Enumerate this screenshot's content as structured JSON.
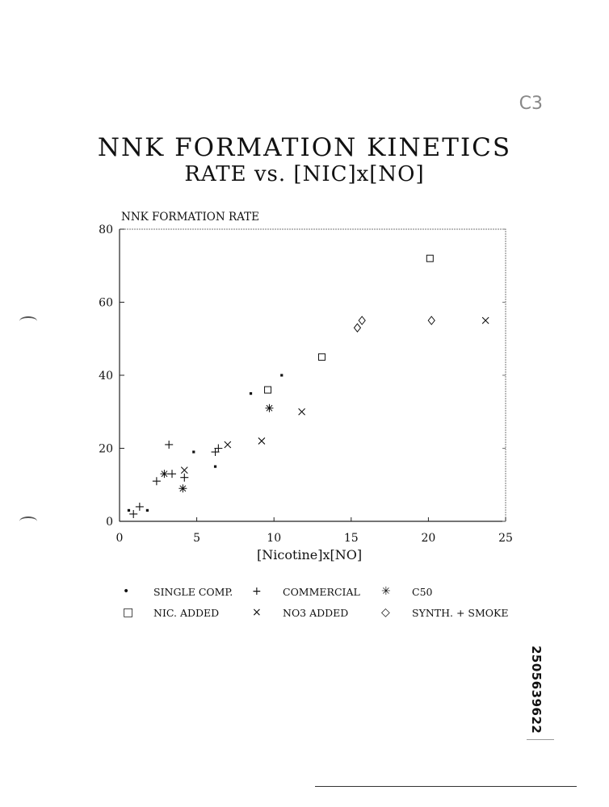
{
  "page_mark": "C3",
  "doc_id": "2505639622",
  "chart_data": {
    "type": "scatter",
    "title": "NNK FORMATION KINETICS",
    "subtitle": "RATE vs. [NIC]x[NO]",
    "xlabel": "[Nicotine]x[NO]",
    "ylabel": "NNK FORMATION RATE",
    "xlim": [
      0,
      25
    ],
    "ylim": [
      0,
      80
    ],
    "x_ticks": [
      0,
      5,
      10,
      15,
      20,
      25
    ],
    "y_ticks": [
      0,
      20,
      40,
      60,
      80
    ],
    "grid": false,
    "legend_position": "bottom",
    "series": [
      {
        "name": "SINGLE COMP.",
        "marker": "dot",
        "color": "#111111",
        "points": [
          [
            0.6,
            3
          ],
          [
            1.8,
            3
          ],
          [
            4.8,
            19
          ],
          [
            6.2,
            15
          ],
          [
            8.5,
            35
          ],
          [
            10.5,
            40
          ]
        ]
      },
      {
        "name": "COMMERCIAL",
        "marker": "plus",
        "color": "#111111",
        "points": [
          [
            0.9,
            2
          ],
          [
            1.3,
            4
          ],
          [
            2.4,
            11
          ],
          [
            3.2,
            21
          ],
          [
            3.4,
            13
          ],
          [
            4.2,
            12
          ],
          [
            6.2,
            19
          ],
          [
            6.4,
            20
          ]
        ]
      },
      {
        "name": "C50",
        "marker": "asterisk",
        "color": "#111111",
        "points": [
          [
            2.9,
            13
          ],
          [
            4.1,
            9
          ],
          [
            9.7,
            31
          ]
        ]
      },
      {
        "name": "NIC. ADDED",
        "marker": "square",
        "color": "#111111",
        "points": [
          [
            9.6,
            36
          ],
          [
            13.1,
            45
          ],
          [
            20.1,
            72
          ]
        ]
      },
      {
        "name": "NO3 ADDED",
        "marker": "cross",
        "color": "#111111",
        "points": [
          [
            4.2,
            14
          ],
          [
            7.0,
            21
          ],
          [
            9.2,
            22
          ],
          [
            11.8,
            30
          ],
          [
            23.7,
            55
          ]
        ]
      },
      {
        "name": "SYNTH. + SMOKE",
        "marker": "diamond",
        "color": "#111111",
        "points": [
          [
            15.4,
            53
          ],
          [
            15.7,
            55
          ],
          [
            20.2,
            55
          ]
        ]
      }
    ]
  },
  "legend": {
    "row1": [
      {
        "symbol": "•",
        "label": "SINGLE COMP."
      },
      {
        "symbol": "+",
        "label": "COMMERCIAL"
      },
      {
        "symbol": "✳",
        "label": "C50"
      }
    ],
    "row2": [
      {
        "symbol": "□",
        "label": "NIC. ADDED"
      },
      {
        "symbol": "×",
        "label": "NO3 ADDED"
      },
      {
        "symbol": "◇",
        "label": "SYNTH. + SMOKE"
      }
    ]
  }
}
